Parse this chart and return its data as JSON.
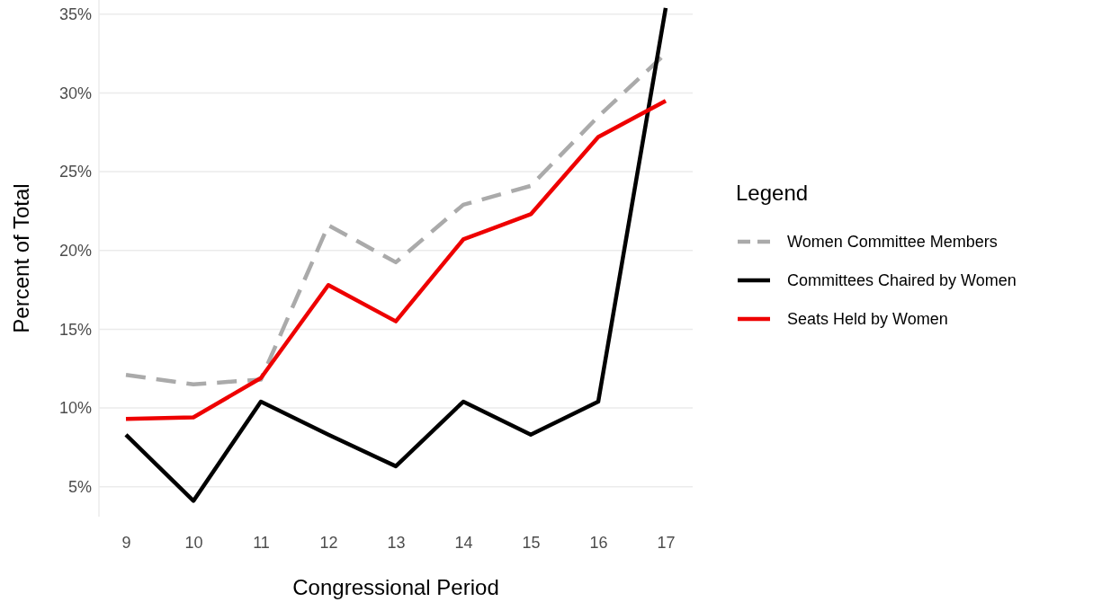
{
  "chart_data": {
    "type": "line",
    "xlabel": "Congressional Period",
    "ylabel": "Percent of Total",
    "legend_title": "Legend",
    "legend": "right",
    "grid": "y",
    "x": [
      9,
      10,
      11,
      12,
      13,
      14,
      15,
      16,
      17
    ],
    "xlim": [
      8.6,
      17.4
    ],
    "xticks": [
      9,
      10,
      11,
      12,
      13,
      14,
      15,
      16,
      17
    ],
    "ylim": [
      3.1,
      35.9
    ],
    "yticks": [
      {
        "value": 5,
        "label": "5%"
      },
      {
        "value": 10,
        "label": "10%"
      },
      {
        "value": 15,
        "label": "15%"
      },
      {
        "value": 20,
        "label": "20%"
      },
      {
        "value": 25,
        "label": "25%"
      },
      {
        "value": 30,
        "label": "30%"
      },
      {
        "value": 35,
        "label": "35%"
      }
    ],
    "series": [
      {
        "name": "Women Committee Members",
        "color": "#aaaaaa",
        "line_style": "dashed",
        "values": [
          12.1,
          11.5,
          11.8,
          21.6,
          19.25,
          22.9,
          24.1,
          28.5,
          32.5
        ]
      },
      {
        "name": "Committees Chaired by Women",
        "color": "#000000",
        "line_style": "solid",
        "values": [
          8.3,
          4.1,
          10.4,
          8.3,
          6.3,
          10.4,
          8.3,
          10.4,
          35.4
        ]
      },
      {
        "name": "Seats Held by Women",
        "color": "#ee0000",
        "line_style": "solid",
        "values": [
          9.3,
          9.4,
          11.9,
          17.8,
          15.5,
          20.7,
          22.3,
          27.2,
          29.5
        ]
      }
    ]
  }
}
